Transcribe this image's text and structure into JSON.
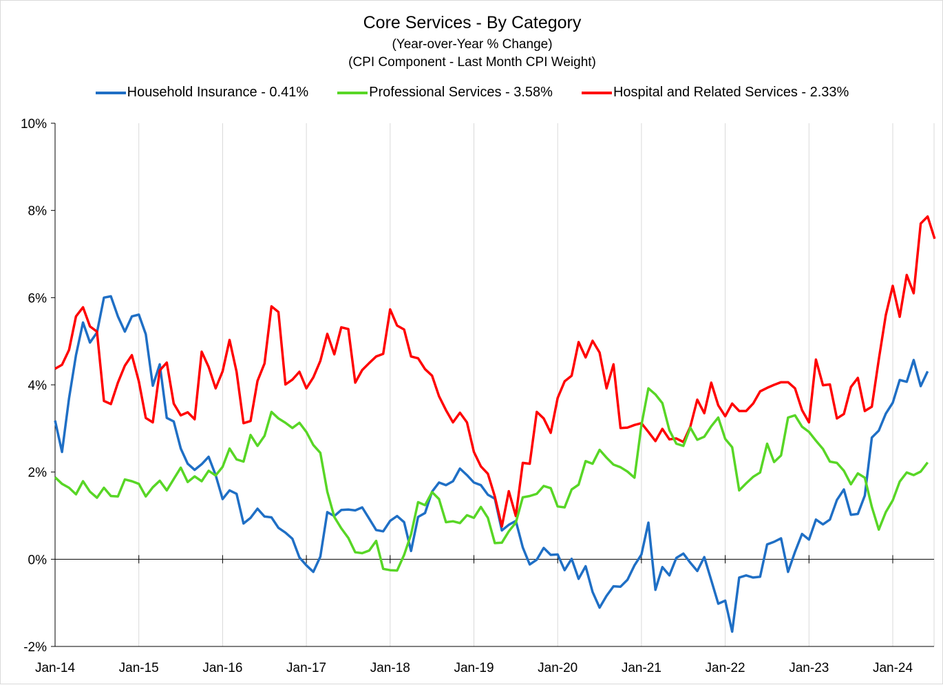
{
  "chart_data": {
    "type": "line",
    "title": "Core Services  - By Category",
    "subtitle": "(Year-over-Year % Change)",
    "subtitle2": "(CPI Component - Last Month CPI Weight)",
    "xlabel": "",
    "ylabel": "",
    "ylim": [
      -2,
      10
    ],
    "yticks": [
      "-2%",
      "0%",
      "2%",
      "4%",
      "6%",
      "8%",
      "10%"
    ],
    "xticks": [
      "Jan-14",
      "Jan-15",
      "Jan-16",
      "Jan-17",
      "Jan-18",
      "Jan-19",
      "Jan-20",
      "Jan-21",
      "Jan-22",
      "Jan-23",
      "Jan-24"
    ],
    "x_start": "Jan-14",
    "grid": "vertical",
    "legend_position": "top",
    "series": [
      {
        "name": "Household Insurance - 0.41%",
        "color": "#1f6fc5",
        "values": [
          3.18,
          2.46,
          3.69,
          4.68,
          5.43,
          4.97,
          5.2,
          6.0,
          6.03,
          5.57,
          5.22,
          5.57,
          5.61,
          5.16,
          3.98,
          4.47,
          3.24,
          3.16,
          2.54,
          2.19,
          2.05,
          2.18,
          2.35,
          1.93,
          1.38,
          1.58,
          1.5,
          0.82,
          0.95,
          1.16,
          0.98,
          0.96,
          0.72,
          0.61,
          0.47,
          0.04,
          -0.14,
          -0.29,
          0.06,
          1.08,
          0.99,
          1.13,
          1.14,
          1.12,
          1.19,
          0.93,
          0.67,
          0.64,
          0.88,
          0.99,
          0.85,
          0.19,
          0.97,
          1.06,
          1.55,
          1.76,
          1.7,
          1.79,
          2.08,
          1.93,
          1.76,
          1.7,
          1.48,
          1.39,
          0.66,
          0.79,
          0.88,
          0.27,
          -0.12,
          -0.01,
          0.26,
          0.1,
          0.11,
          -0.25,
          0.01,
          -0.45,
          -0.16,
          -0.75,
          -1.11,
          -0.84,
          -0.62,
          -0.63,
          -0.47,
          -0.14,
          0.11,
          0.84,
          -0.7,
          -0.18,
          -0.37,
          0.03,
          0.13,
          -0.08,
          -0.27,
          0.05,
          -0.48,
          -1.02,
          -0.95,
          -1.66,
          -0.42,
          -0.37,
          -0.42,
          -0.4,
          0.34,
          0.4,
          0.48,
          -0.29,
          0.17,
          0.58,
          0.45,
          0.91,
          0.8,
          0.91,
          1.36,
          1.6,
          1.02,
          1.04,
          1.46,
          2.79,
          2.95,
          3.34,
          3.59,
          4.11,
          4.07,
          4.57,
          3.97,
          4.31
        ]
      },
      {
        "name": "Professional Services - 3.58%",
        "color": "#58d626",
        "values": [
          1.88,
          1.73,
          1.64,
          1.49,
          1.79,
          1.55,
          1.41,
          1.64,
          1.45,
          1.44,
          1.83,
          1.79,
          1.73,
          1.44,
          1.65,
          1.8,
          1.58,
          1.84,
          2.1,
          1.77,
          1.9,
          1.79,
          2.03,
          1.92,
          2.12,
          2.54,
          2.29,
          2.24,
          2.85,
          2.6,
          2.83,
          3.38,
          3.23,
          3.13,
          3.01,
          3.13,
          2.92,
          2.62,
          2.44,
          1.55,
          0.97,
          0.71,
          0.49,
          0.16,
          0.14,
          0.2,
          0.42,
          -0.22,
          -0.25,
          -0.26,
          0.1,
          0.57,
          1.31,
          1.24,
          1.54,
          1.38,
          0.85,
          0.87,
          0.83,
          1.01,
          0.95,
          1.2,
          0.95,
          0.37,
          0.38,
          0.64,
          0.84,
          1.42,
          1.45,
          1.5,
          1.68,
          1.63,
          1.21,
          1.19,
          1.6,
          1.71,
          2.25,
          2.19,
          2.51,
          2.33,
          2.17,
          2.11,
          2.01,
          1.87,
          3.08,
          3.92,
          3.78,
          3.58,
          2.96,
          2.65,
          2.6,
          3.02,
          2.74,
          2.81,
          3.05,
          3.25,
          2.76,
          2.57,
          1.58,
          1.74,
          1.89,
          1.99,
          2.65,
          2.23,
          2.38,
          3.25,
          3.3,
          3.04,
          2.92,
          2.72,
          2.53,
          2.24,
          2.21,
          2.03,
          1.72,
          1.97,
          1.87,
          1.2,
          0.68,
          1.08,
          1.35,
          1.78,
          1.99,
          1.93,
          2.01,
          2.22
        ]
      },
      {
        "name": "Hospital and Related Services - 2.33%",
        "color": "#ff0000",
        "values": [
          4.37,
          4.46,
          4.8,
          5.57,
          5.78,
          5.34,
          5.22,
          3.63,
          3.56,
          4.05,
          4.44,
          4.68,
          4.08,
          3.24,
          3.14,
          4.33,
          4.51,
          3.57,
          3.3,
          3.37,
          3.21,
          4.76,
          4.41,
          3.92,
          4.31,
          5.03,
          4.3,
          3.12,
          3.17,
          4.09,
          4.49,
          5.8,
          5.67,
          4.01,
          4.12,
          4.3,
          3.92,
          4.17,
          4.55,
          5.17,
          4.7,
          5.32,
          5.28,
          4.05,
          4.34,
          4.5,
          4.65,
          4.71,
          5.73,
          5.36,
          5.27,
          4.65,
          4.61,
          4.36,
          4.21,
          3.74,
          3.42,
          3.14,
          3.36,
          3.14,
          2.46,
          2.13,
          1.96,
          1.44,
          0.75,
          1.56,
          0.99,
          2.21,
          2.19,
          3.38,
          3.23,
          2.9,
          3.7,
          4.08,
          4.21,
          4.98,
          4.63,
          5.01,
          4.74,
          3.92,
          4.47,
          3.01,
          3.02,
          3.08,
          3.12,
          2.92,
          2.71,
          2.99,
          2.75,
          2.77,
          2.69,
          3.04,
          3.66,
          3.35,
          4.05,
          3.53,
          3.28,
          3.57,
          3.4,
          3.4,
          3.57,
          3.85,
          3.93,
          4.0,
          4.06,
          4.06,
          3.92,
          3.42,
          3.14,
          4.58,
          3.99,
          4.01,
          3.23,
          3.33,
          3.95,
          4.16,
          3.4,
          3.5,
          4.58,
          5.6,
          6.27,
          5.56,
          6.52,
          6.1,
          7.7,
          7.86,
          7.35
        ]
      }
    ]
  }
}
